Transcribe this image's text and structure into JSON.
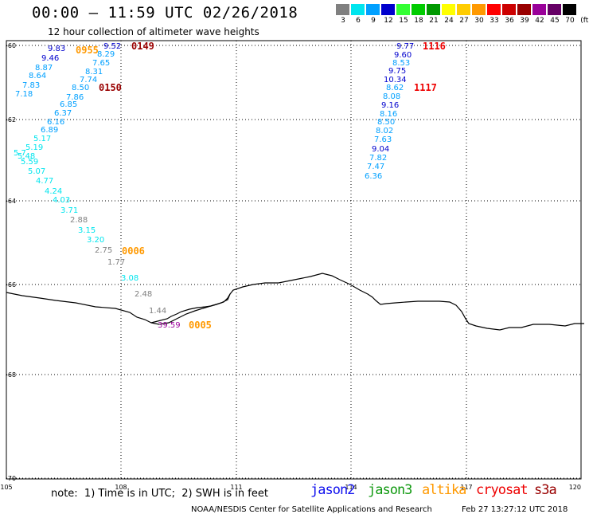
{
  "header": {
    "title": "00:00 – 11:59 UTC 02/26/2018",
    "subtitle": "12 hour collection of altimeter wave heights"
  },
  "legend": {
    "unit_label": "(ft)",
    "bins": [
      {
        "label": "3",
        "color": "#808080"
      },
      {
        "label": "6",
        "color": "#00e5ee"
      },
      {
        "label": "9",
        "color": "#00a0ff"
      },
      {
        "label": "12",
        "color": "#0000cd"
      },
      {
        "label": "15",
        "color": "#33ff33"
      },
      {
        "label": "18",
        "color": "#00cc00"
      },
      {
        "label": "21",
        "color": "#009900"
      },
      {
        "label": "24",
        "color": "#ffff00"
      },
      {
        "label": "27",
        "color": "#ffcc00"
      },
      {
        "label": "30",
        "color": "#ff9900"
      },
      {
        "label": "33",
        "color": "#ff0000"
      },
      {
        "label": "36",
        "color": "#cc0000"
      },
      {
        "label": "39",
        "color": "#990000"
      },
      {
        "label": "42",
        "color": "#990099"
      },
      {
        "label": "45",
        "color": "#660066"
      },
      {
        "label": "70",
        "color": "#000000"
      }
    ]
  },
  "map": {
    "lat_ticks": [
      "-60",
      "-62",
      "-64",
      "-66",
      "-68",
      "-70"
    ],
    "lon_ticks": [
      "105",
      "108",
      "111",
      "114",
      "117",
      "120"
    ],
    "track_points": [
      {
        "v": "9.83",
        "c": "#0000cd"
      },
      {
        "v": "9.52",
        "c": "#0000cd"
      },
      {
        "v": "9.46",
        "c": "#0000cd"
      },
      {
        "v": "8.87",
        "c": "#00a0ff"
      },
      {
        "v": "8.29",
        "c": "#00a0ff"
      },
      {
        "v": "7.65",
        "c": "#00a0ff"
      },
      {
        "v": "8.64",
        "c": "#00a0ff"
      },
      {
        "v": "8.31",
        "c": "#00a0ff"
      },
      {
        "v": "7.83",
        "c": "#00a0ff"
      },
      {
        "v": "7.74",
        "c": "#00a0ff"
      },
      {
        "v": "7.18",
        "c": "#00a0ff"
      },
      {
        "v": "8.50",
        "c": "#00a0ff"
      },
      {
        "v": "7.86",
        "c": "#00a0ff"
      },
      {
        "v": "6.85",
        "c": "#00a0ff"
      },
      {
        "v": "6.37",
        "c": "#00a0ff"
      },
      {
        "v": "6.16",
        "c": "#00a0ff"
      },
      {
        "v": "6.89",
        "c": "#00a0ff"
      },
      {
        "v": "5.17",
        "c": "#00e5ee"
      },
      {
        "v": "5.19",
        "c": "#00e5ee"
      },
      {
        "v": "5.7",
        "c": "#00e5ee"
      },
      {
        "v": "5.48",
        "c": "#00e5ee"
      },
      {
        "v": "5.59",
        "c": "#00e5ee"
      },
      {
        "v": "5.07",
        "c": "#00e5ee"
      },
      {
        "v": "4.77",
        "c": "#00e5ee"
      },
      {
        "v": "4.24",
        "c": "#00e5ee"
      },
      {
        "v": "4.03",
        "c": "#00e5ee"
      },
      {
        "v": "3.71",
        "c": "#00e5ee"
      },
      {
        "v": "2.88",
        "c": "#808080"
      },
      {
        "v": "3.15",
        "c": "#00e5ee"
      },
      {
        "v": "3.20",
        "c": "#00e5ee"
      },
      {
        "v": "2.75",
        "c": "#808080"
      },
      {
        "v": "1.77",
        "c": "#808080"
      },
      {
        "v": "3.08",
        "c": "#00e5ee"
      },
      {
        "v": "2.48",
        "c": "#808080"
      },
      {
        "v": "1.44",
        "c": "#808080"
      },
      {
        "v": "39.59",
        "c": "#990099"
      },
      {
        "v": "9.77",
        "c": "#0000cd"
      },
      {
        "v": "9.60",
        "c": "#0000cd"
      },
      {
        "v": "8.53",
        "c": "#00a0ff"
      },
      {
        "v": "9.75",
        "c": "#0000cd"
      },
      {
        "v": "10.34",
        "c": "#0000cd"
      },
      {
        "v": "8.62",
        "c": "#00a0ff"
      },
      {
        "v": "8.08",
        "c": "#00a0ff"
      },
      {
        "v": "9.16",
        "c": "#0000cd"
      },
      {
        "v": "8.16",
        "c": "#00a0ff"
      },
      {
        "v": "8.50",
        "c": "#00a0ff"
      },
      {
        "v": "8.02",
        "c": "#00a0ff"
      },
      {
        "v": "7.63",
        "c": "#00a0ff"
      },
      {
        "v": "9.04",
        "c": "#0000cd"
      },
      {
        "v": "7.82",
        "c": "#00a0ff"
      },
      {
        "v": "7.47",
        "c": "#00a0ff"
      },
      {
        "v": "6.36",
        "c": "#00a0ff"
      }
    ],
    "time_labels": [
      {
        "t": "0955",
        "c": "#ff9900"
      },
      {
        "t": "0149",
        "c": "#990000"
      },
      {
        "t": "0150",
        "c": "#990000"
      },
      {
        "t": "0006",
        "c": "#ff9900"
      },
      {
        "t": "0005",
        "c": "#ff9900"
      },
      {
        "t": "1116",
        "c": "#ee0000"
      },
      {
        "t": "1117",
        "c": "#ee0000"
      }
    ]
  },
  "footer": {
    "note": "note:  1) Time is in UTC;  2) SWH is in feet",
    "satellites": [
      {
        "name": "jason2",
        "color": "#1010ee"
      },
      {
        "name": "jason3",
        "color": "#109910"
      },
      {
        "name": "altika",
        "color": "#ff9900"
      },
      {
        "name": "cryosat",
        "color": "#ee0000"
      },
      {
        "name": "s3a",
        "color": "#990000"
      }
    ],
    "credit": "NOAA/NESDIS Center for Satellite Applications and Research",
    "timestamp": "Feb 27 13:27:12 UTC 2018"
  }
}
